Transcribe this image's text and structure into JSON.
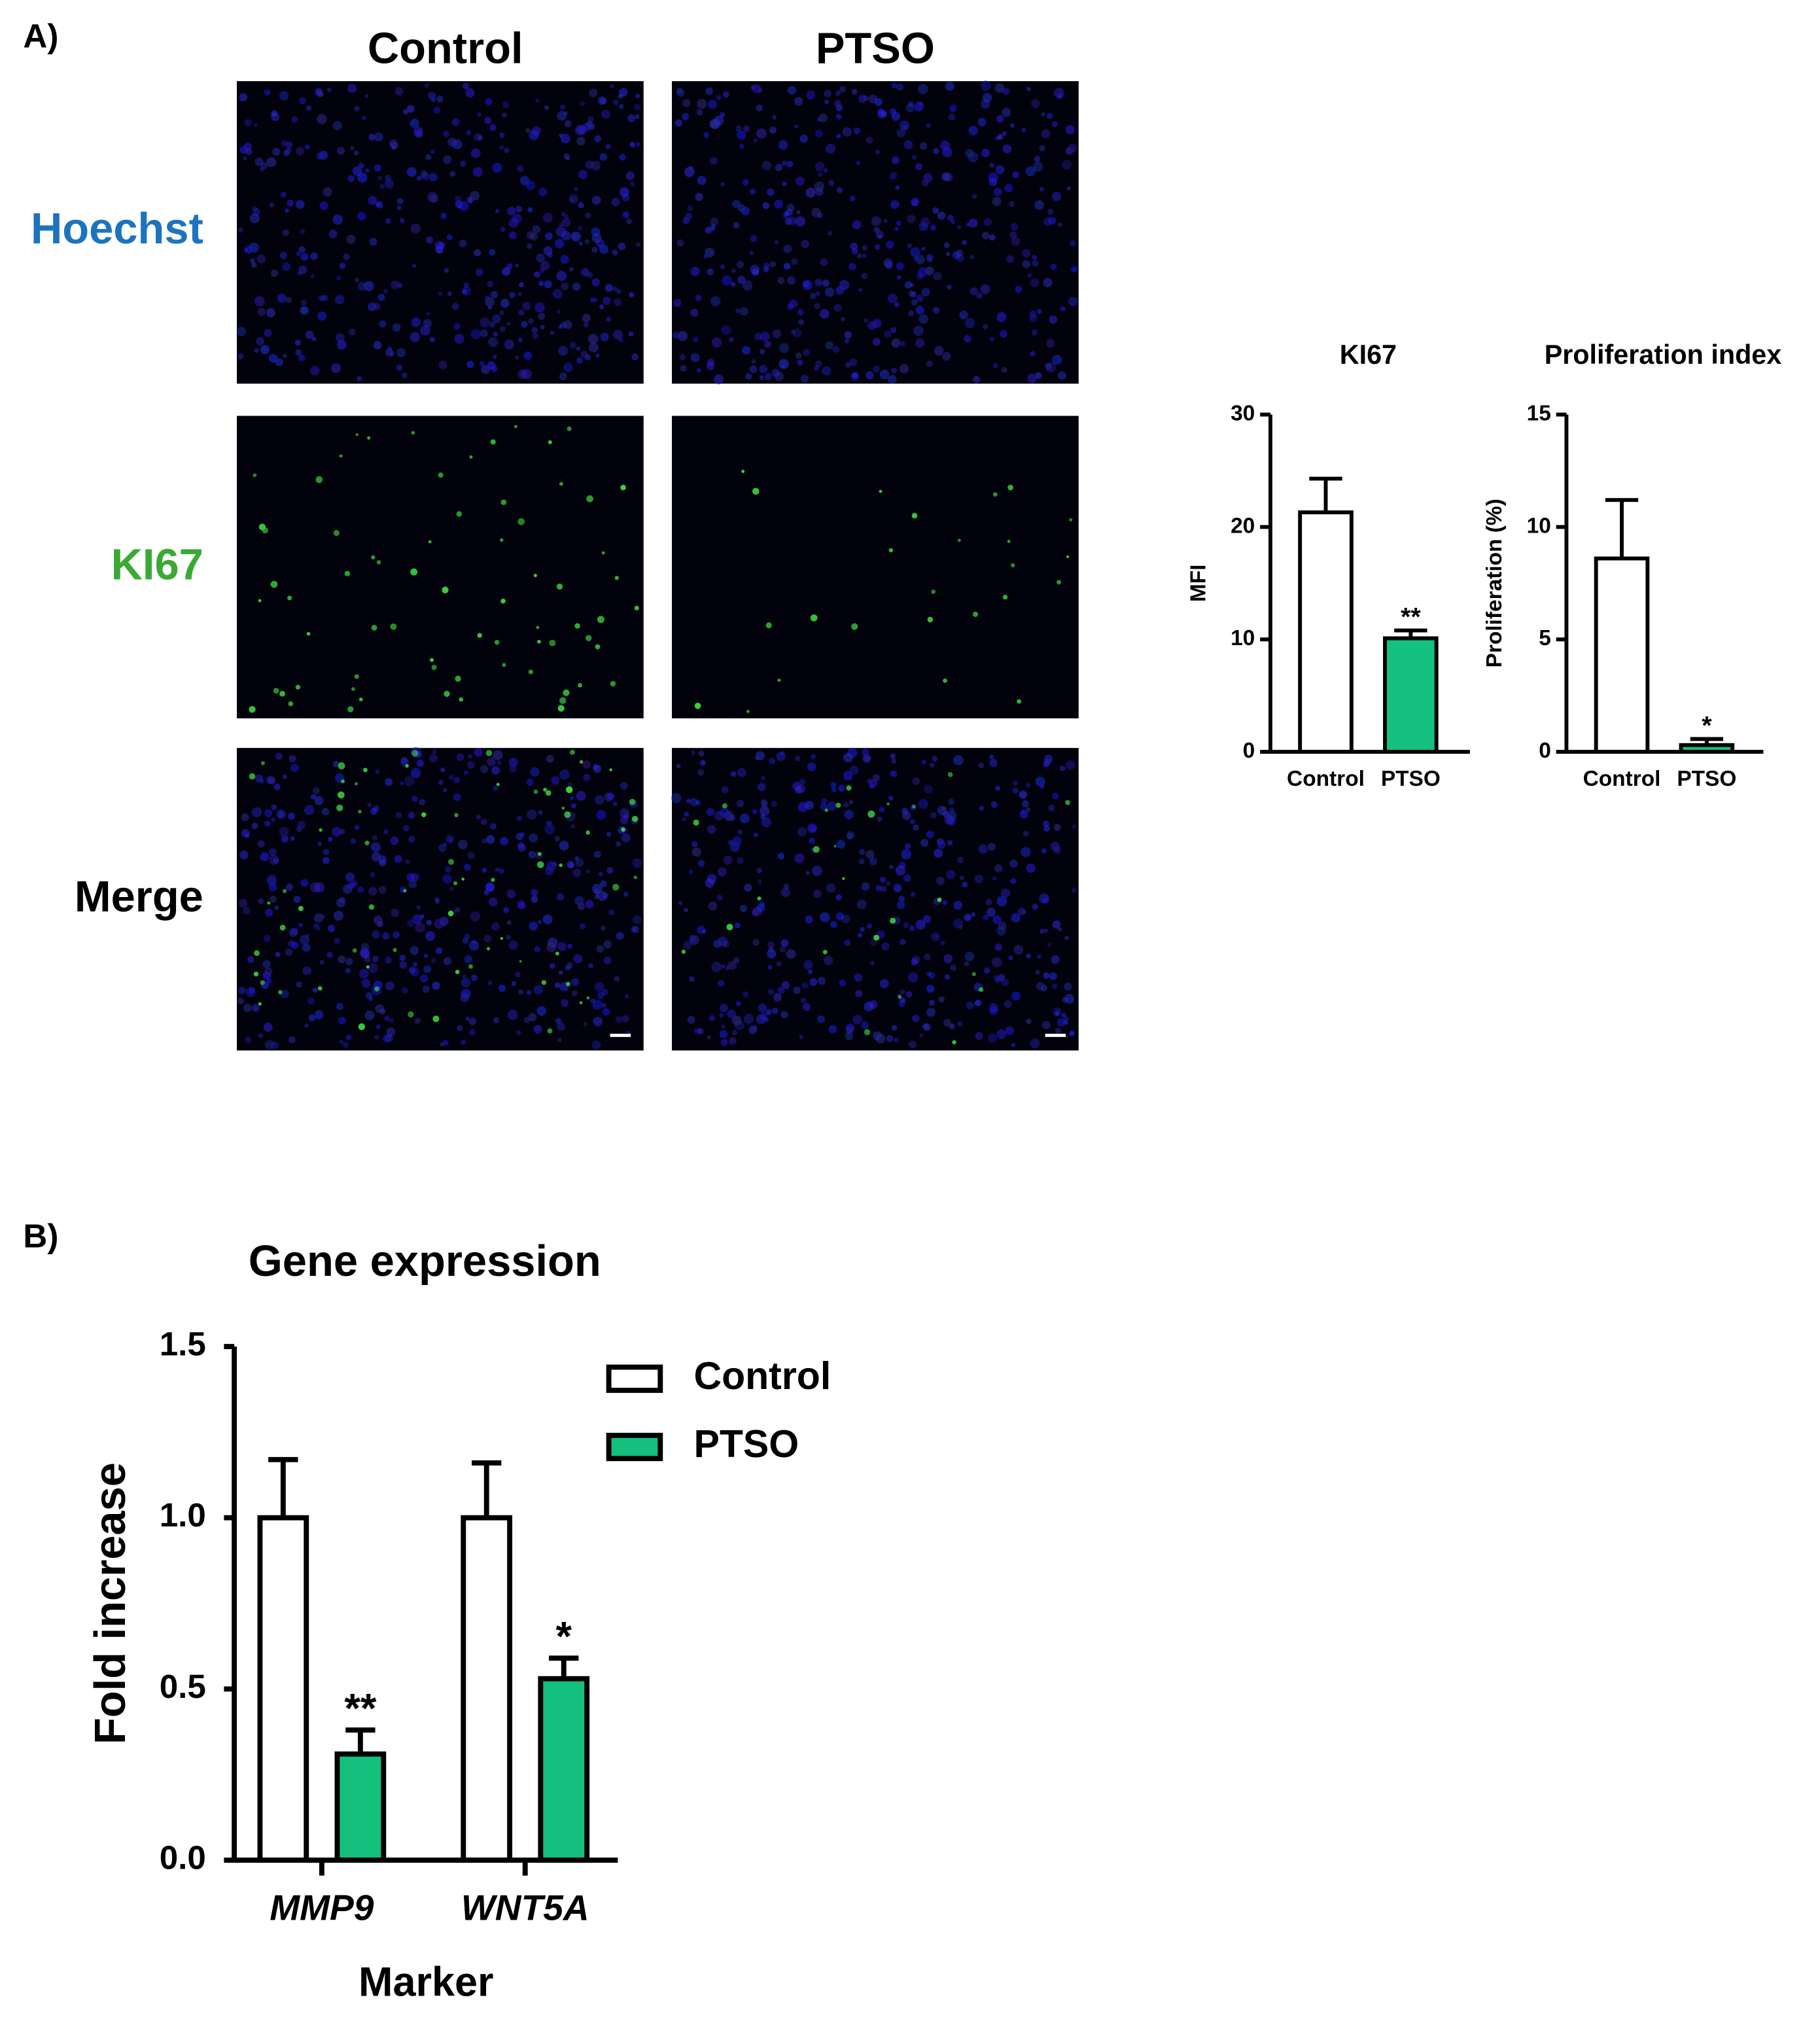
{
  "panel_labels": [
    "A)",
    "B)"
  ],
  "image_grid": {
    "columns": [
      "Control",
      "PTSO"
    ],
    "rows": [
      "Hoechst",
      "KI67",
      "Merge"
    ]
  },
  "chart_data": [
    {
      "type": "bar",
      "title": "KI67",
      "y_label": "MFI",
      "categories": [
        "Control",
        "PTSO"
      ],
      "values": [
        21.3,
        10.1
      ],
      "errors": [
        3.0,
        0.7
      ],
      "annotations": [
        null,
        "**"
      ],
      "colors": [
        "#ffffff",
        "#13c07e"
      ],
      "ylim": [
        0,
        30
      ],
      "yticks": [
        0,
        10,
        20,
        30
      ]
    },
    {
      "type": "bar",
      "title": "Proliferation index",
      "y_label": "Proliferation (%)",
      "categories": [
        "Control",
        "PTSO"
      ],
      "values": [
        8.6,
        0.3
      ],
      "errors": [
        2.6,
        0.27
      ],
      "annotations": [
        null,
        "*"
      ],
      "colors": [
        "#ffffff",
        "#13c07e"
      ],
      "ylim": [
        0,
        15
      ],
      "yticks": [
        0,
        5,
        10,
        15
      ]
    },
    {
      "type": "bar",
      "title": "Gene expression",
      "x_label": "Marker",
      "y_label": "Fold increase",
      "categories": [
        "MMP9",
        "WNT5A"
      ],
      "series": [
        {
          "name": "Control",
          "color": "#ffffff",
          "values": [
            1.0,
            1.0
          ],
          "errors": [
            0.17,
            0.16
          ]
        },
        {
          "name": "PTSO",
          "color": "#13c07e",
          "values": [
            0.31,
            0.53
          ],
          "errors": [
            0.07,
            0.06
          ],
          "annotations": [
            "**",
            "*"
          ]
        }
      ],
      "ylim": [
        0,
        1.5
      ],
      "yticks": [
        {
          "value": 0,
          "label": "0.0"
        },
        0.5,
        {
          "value": 1,
          "label": "1.0"
        },
        1.5
      ],
      "legend": "top-right"
    }
  ]
}
